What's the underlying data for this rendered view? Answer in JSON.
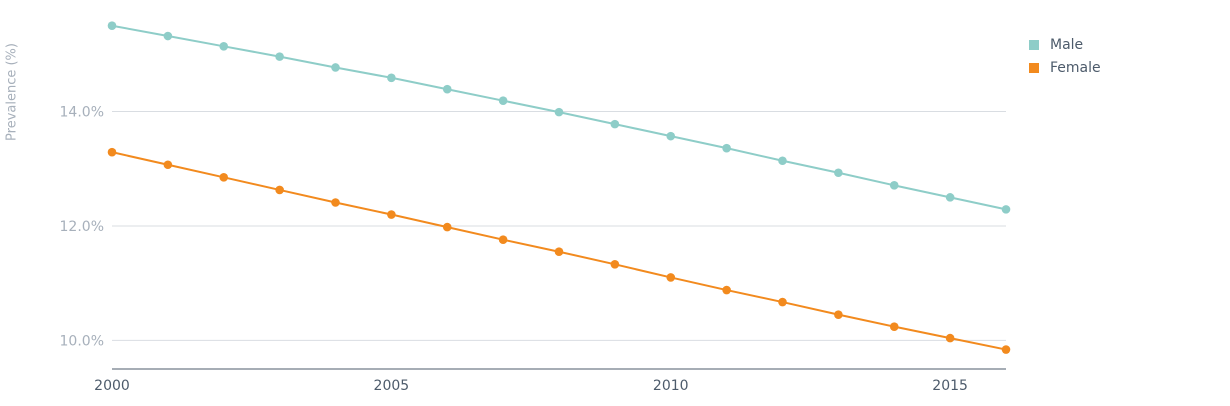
{
  "chart_data": {
    "type": "line",
    "ylabel": "Prevalence (%)",
    "xlabel": "",
    "xlim": [
      2000,
      2016
    ],
    "ylim": [
      9.5,
      15.6
    ],
    "x": [
      2000,
      2001,
      2002,
      2003,
      2004,
      2005,
      2006,
      2007,
      2008,
      2009,
      2010,
      2011,
      2012,
      2013,
      2014,
      2015,
      2016
    ],
    "x_ticks": [
      {
        "value": 2000,
        "label": "2000"
      },
      {
        "value": 2005,
        "label": "2005"
      },
      {
        "value": 2010,
        "label": "2010"
      },
      {
        "value": 2015,
        "label": "2015"
      }
    ],
    "y_ticks": [
      {
        "value": 10.0,
        "label": "10.0%"
      },
      {
        "value": 12.0,
        "label": "12.0%"
      },
      {
        "value": 14.0,
        "label": "14.0%"
      }
    ],
    "grid": "horizontal",
    "legend_position": "top-right",
    "series": [
      {
        "name": "Male",
        "color": "#8ecdc8",
        "values": [
          15.5,
          15.32,
          15.14,
          14.96,
          14.77,
          14.59,
          14.39,
          14.19,
          13.99,
          13.78,
          13.57,
          13.36,
          13.14,
          12.93,
          12.71,
          12.5,
          12.29
        ]
      },
      {
        "name": "Female",
        "color": "#f28a1e",
        "values": [
          13.29,
          13.07,
          12.85,
          12.63,
          12.41,
          12.2,
          11.98,
          11.76,
          11.55,
          11.33,
          11.1,
          10.88,
          10.67,
          10.45,
          10.24,
          10.04,
          9.84
        ]
      }
    ]
  },
  "colors": {
    "axis_text": "#a7b0bb",
    "x_tick_text": "#4d5b6b",
    "grid": "#d9dde2",
    "axis_line": "#4d5b6b"
  }
}
